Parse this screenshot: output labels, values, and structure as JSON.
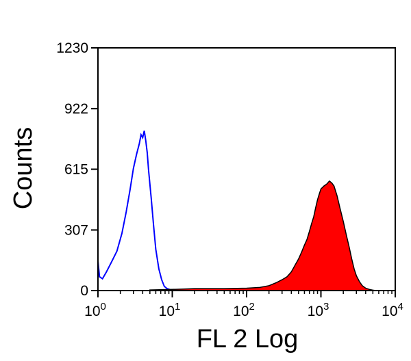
{
  "chart_data": {
    "type": "area",
    "xlabel": "FL 2 Log",
    "ylabel": "Counts",
    "x_scale": "log",
    "xlim": [
      1,
      10000
    ],
    "ylim": [
      0,
      1230
    ],
    "y_ticks": [
      "0",
      "307",
      "615",
      "922",
      "1230"
    ],
    "x_ticks": [
      {
        "base": "10",
        "exp": "0"
      },
      {
        "base": "10",
        "exp": "1"
      },
      {
        "base": "10",
        "exp": "2"
      },
      {
        "base": "10",
        "exp": "3"
      },
      {
        "base": "10",
        "exp": "4"
      }
    ],
    "grid": false,
    "series": [
      {
        "style": "outline",
        "color": "#0000ff",
        "x": [
          1.0,
          1.05,
          1.15,
          1.3,
          1.5,
          1.8,
          2.1,
          2.4,
          2.7,
          3.0,
          3.3,
          3.6,
          3.8,
          4.0,
          4.2,
          4.4,
          4.6,
          4.8,
          5.2,
          5.6,
          6.0,
          6.6,
          7.2,
          7.8,
          8.5,
          9.5,
          11,
          13,
          16
        ],
        "y": [
          150,
          70,
          60,
          95,
          140,
          200,
          290,
          400,
          510,
          620,
          690,
          745,
          790,
          775,
          810,
          760,
          700,
          610,
          470,
          330,
          210,
          110,
          55,
          22,
          10,
          4,
          2,
          0,
          0
        ]
      },
      {
        "style": "filled",
        "color": "#ff0000",
        "x": [
          5,
          10,
          20,
          50,
          100,
          150,
          200,
          250,
          300,
          350,
          400,
          450,
          500,
          550,
          600,
          650,
          700,
          750,
          800,
          850,
          900,
          950,
          1000,
          1100,
          1200,
          1300,
          1400,
          1500,
          1650,
          1800,
          2000,
          2200,
          2400,
          2600,
          2800,
          3000,
          3300,
          3600,
          4000,
          4500,
          5000,
          5500
        ],
        "y": [
          3,
          6,
          10,
          10,
          12,
          16,
          25,
          40,
          55,
          70,
          95,
          130,
          160,
          195,
          230,
          260,
          300,
          340,
          375,
          420,
          460,
          490,
          515,
          530,
          540,
          555,
          545,
          530,
          480,
          420,
          350,
          280,
          220,
          160,
          110,
          75,
          45,
          25,
          12,
          6,
          2,
          0
        ]
      }
    ]
  }
}
